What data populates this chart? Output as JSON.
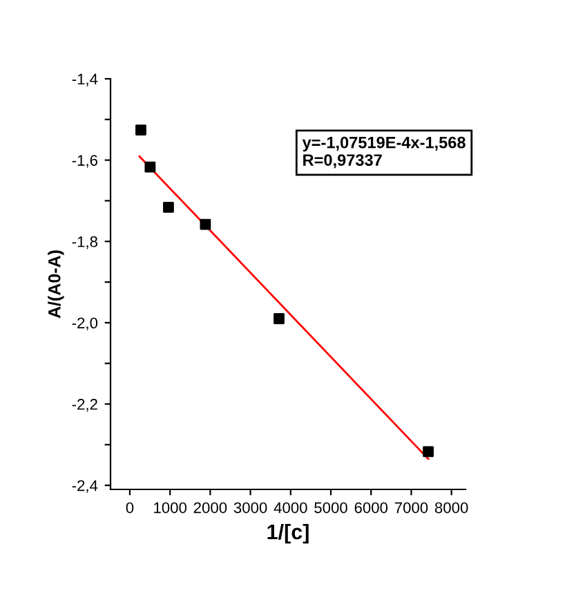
{
  "chart_data": {
    "type": "scatter",
    "xlabel": "1/[c]",
    "ylabel": "A/(A0-A)",
    "annotations": [
      "y=-1,07519E-4x-1,568\nR=0,97337"
    ],
    "x": [
      275,
      505,
      962,
      1880,
      3711,
      7423
    ],
    "series": [
      {
        "color": "#000000",
        "marker": "square",
        "values": [
          -1.526,
          -1.617,
          -1.716,
          -1.758,
          -1.99,
          -2.317
        ]
      },
      {
        "type": "line",
        "color": "#ff0000",
        "x": [
          240,
          7423
        ],
        "values": [
          -1.591,
          -2.335
        ],
        "marker": "none",
        "line_style": "solid"
      }
    ],
    "xlim": [
      -480,
      8350
    ],
    "ylim": [
      -2.41,
      -1.4
    ],
    "xticks": [
      0,
      1000,
      2000,
      3000,
      4000,
      5000,
      6000,
      7000,
      8000
    ],
    "yticks": [
      {
        "value": -2.4,
        "label": "-2,4"
      },
      {
        "value": -2.3,
        "label": null
      },
      {
        "value": -2.2,
        "label": "-2,2"
      },
      {
        "value": -2.1,
        "label": null
      },
      {
        "value": -2.0,
        "label": "-2,0"
      },
      {
        "value": -1.9,
        "label": null
      },
      {
        "value": -1.8,
        "label": "-1,8"
      },
      {
        "value": -1.7,
        "label": null
      },
      {
        "value": -1.6,
        "label": "-1,6"
      },
      {
        "value": -1.5,
        "label": null
      },
      {
        "value": -1.4,
        "label": "-1,4"
      }
    ],
    "grid": false,
    "legend": false
  }
}
